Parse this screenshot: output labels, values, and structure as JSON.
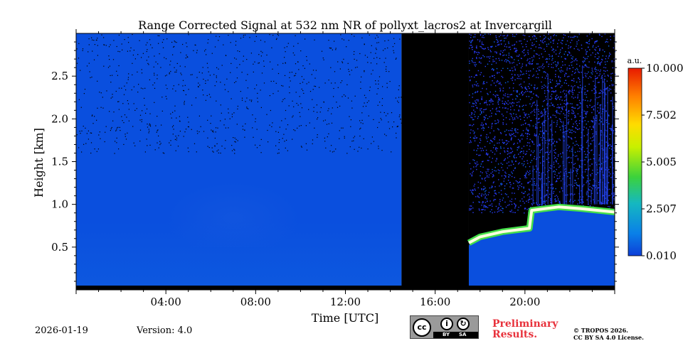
{
  "chart_data": {
    "type": "heatmap",
    "title": "Range Corrected Signal at 532 nm NR of pollyxt_lacros2 at Invercargill",
    "xlabel": "Time [UTC]",
    "ylabel": "Height [km]",
    "xlim_hours": [
      0,
      24
    ],
    "ylim_km": [
      0,
      3.0
    ],
    "xticks": [
      {
        "value": 4,
        "label": "04:00"
      },
      {
        "value": 8,
        "label": "08:00"
      },
      {
        "value": 12,
        "label": "12:00"
      },
      {
        "value": 16,
        "label": "16:00"
      },
      {
        "value": 20,
        "label": "20:00"
      }
    ],
    "yticks": [
      {
        "value": 0.5,
        "label": "0.5"
      },
      {
        "value": 1.0,
        "label": "1.0"
      },
      {
        "value": 1.5,
        "label": "1.5"
      },
      {
        "value": 2.0,
        "label": "2.0"
      },
      {
        "value": 2.5,
        "label": "2.5"
      }
    ],
    "colorbar": {
      "unit": "a.u.",
      "range": [
        0.01,
        10.0
      ],
      "ticks": [
        "10.000",
        "7.502",
        "5.005",
        "2.507",
        "0.010"
      ]
    },
    "no_data_gap_hours": [
      14.5,
      17.5
    ],
    "cloud_layer": [
      {
        "time": 17.5,
        "height_km": 0.55
      },
      {
        "time": 18.0,
        "height_km": 0.62
      },
      {
        "time": 19.0,
        "height_km": 0.68
      },
      {
        "time": 20.2,
        "height_km": 0.72
      },
      {
        "time": 20.3,
        "height_km": 0.93
      },
      {
        "time": 21.5,
        "height_km": 0.97
      },
      {
        "time": 22.5,
        "height_km": 0.95
      },
      {
        "time": 24.0,
        "height_km": 0.91
      }
    ]
  },
  "footer": {
    "date": "2026-01-19",
    "version": "Version: 4.0",
    "license_badge": {
      "cc": "cc",
      "by": "BY",
      "sa": "SA"
    },
    "preliminary_line1": "Preliminary",
    "preliminary_line2": "Results.",
    "copyright_line1": "© TROPOS 2026.",
    "copyright_line2": "CC BY SA 4.0 License."
  }
}
